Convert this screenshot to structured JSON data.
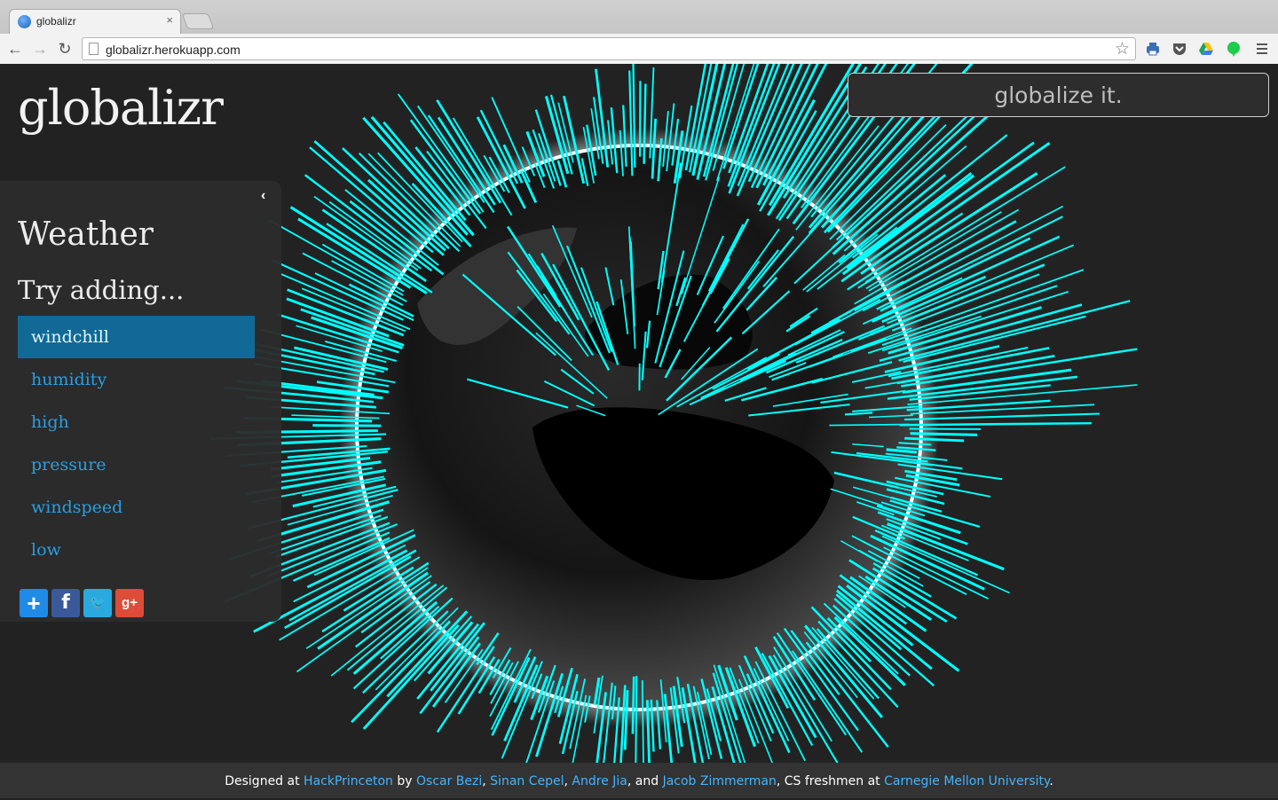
{
  "browser": {
    "tab_title": "globalizr",
    "tab_close": "×",
    "url": "globalizr.herokuapp.com",
    "back": "←",
    "forward": "→",
    "reload": "↻",
    "star": "☆"
  },
  "app": {
    "logo": "globalizr",
    "search_placeholder": "globalize it.",
    "collapse": "‹"
  },
  "sidebar": {
    "title": "Weather",
    "subtitle": "Try adding...",
    "options": [
      {
        "label": "windchill",
        "active": true
      },
      {
        "label": "humidity",
        "active": false
      },
      {
        "label": "high",
        "active": false
      },
      {
        "label": "pressure",
        "active": false
      },
      {
        "label": "windspeed",
        "active": false
      },
      {
        "label": "low",
        "active": false
      }
    ],
    "share": [
      {
        "name": "share-plus-icon",
        "glyph": "+",
        "color": "#1f8be6"
      },
      {
        "name": "facebook-icon",
        "glyph": "f",
        "color": "#3b5998"
      },
      {
        "name": "twitter-icon",
        "glyph": "🐦",
        "color": "#2aa9e0"
      },
      {
        "name": "google-plus-icon",
        "glyph": "g+",
        "color": "#dd4b39"
      }
    ]
  },
  "footer": {
    "designed_at": "Designed at ",
    "hackprinceton": "HackPrinceton",
    "by": " by ",
    "oscar": "Oscar Bezi",
    "sep1": ", ",
    "sinan": "Sinan Cepel",
    "sep2": ", ",
    "andre": "Andre Jia",
    "and": ", and ",
    "jacob": "Jacob Zimmerman",
    "cs": ", CS freshmen at ",
    "cmu": "Carnegie Mellon University",
    "end": "."
  },
  "colors": {
    "bar": "#00ffff",
    "accent": "#106a95",
    "link": "#2a9ee0"
  }
}
